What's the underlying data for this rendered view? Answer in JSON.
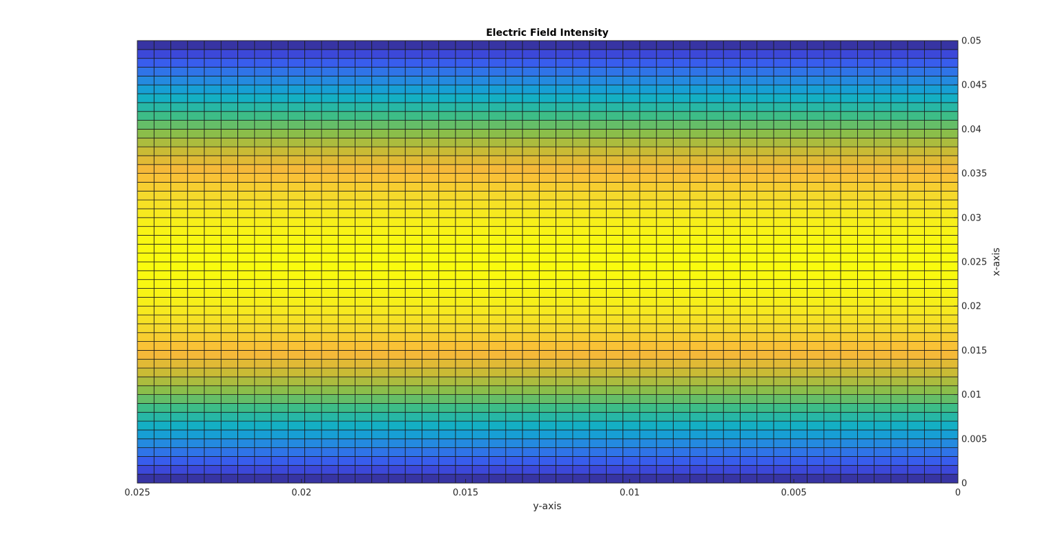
{
  "chart_data": {
    "type": "heatmap",
    "title": "Electric Field Intensity",
    "xlabel": "y-axis",
    "ylabel": "x-axis",
    "x_ticks": [
      "0.025",
      "0.02",
      "0.015",
      "0.01",
      "0.005",
      "0"
    ],
    "y_ticks": [
      "0",
      "0.005",
      "0.01",
      "0.015",
      "0.02",
      "0.025",
      "0.03",
      "0.035",
      "0.04",
      "0.045",
      "0.05"
    ],
    "xlim": [
      0,
      0.025
    ],
    "ylim": [
      0,
      0.05
    ],
    "x_reversed": true,
    "y_axis_location": "right",
    "grid_columns": 49,
    "grid_rows": 50,
    "colormap": "parula",
    "row_values": [
      0.0,
      0.063,
      0.125,
      0.187,
      0.249,
      0.309,
      0.368,
      0.426,
      0.482,
      0.536,
      0.588,
      0.637,
      0.685,
      0.729,
      0.771,
      0.809,
      0.844,
      0.876,
      0.905,
      0.93,
      0.951,
      0.969,
      0.982,
      0.992,
      0.998,
      1.0,
      0.998,
      0.992,
      0.982,
      0.969,
      0.951,
      0.93,
      0.905,
      0.876,
      0.844,
      0.809,
      0.771,
      0.729,
      0.685,
      0.637,
      0.588,
      0.536,
      0.482,
      0.426,
      0.368,
      0.309,
      0.249,
      0.187,
      0.125,
      0.063,
      0.0
    ],
    "column_values": "uniform"
  }
}
